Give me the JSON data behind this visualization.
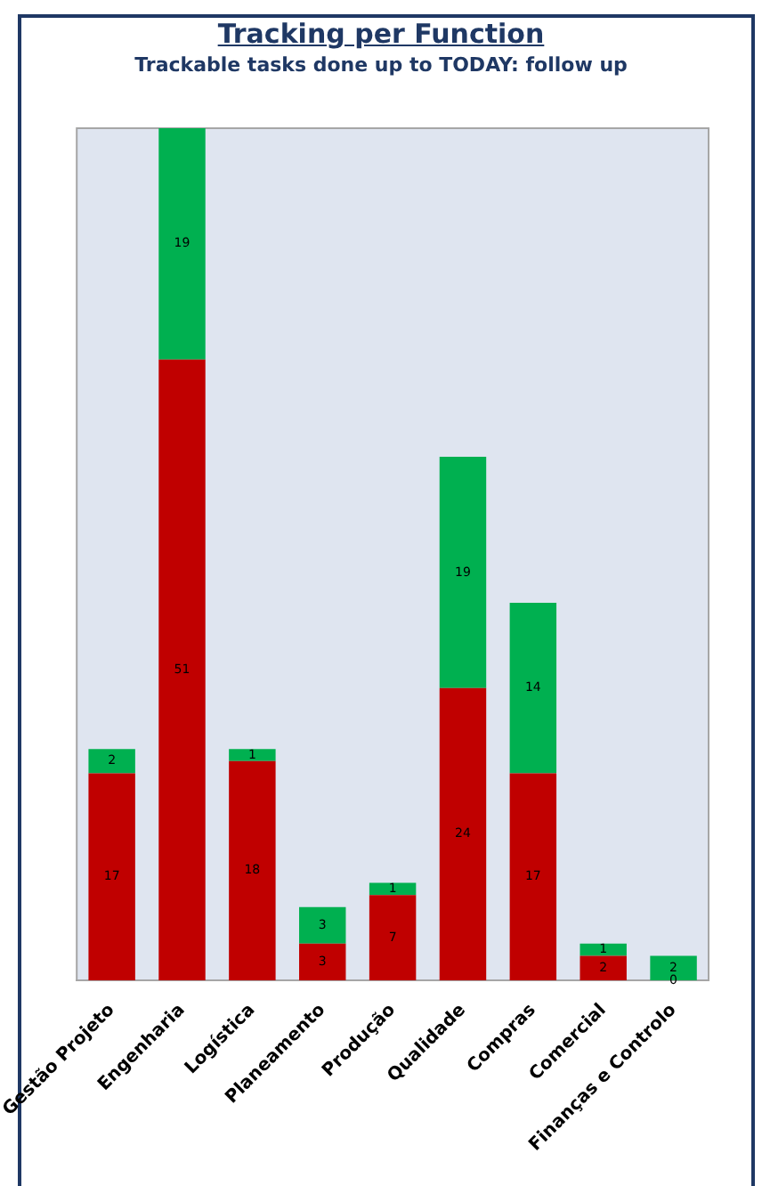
{
  "chart_data": {
    "type": "bar",
    "title": "Tracking per Function",
    "subtitle": "Trackable tasks done up to TODAY: follow up",
    "categories": [
      "Gestão Projeto",
      "Engenharia",
      "Logística",
      "Planeamento",
      "Produção",
      "Qualidade",
      "Compras",
      "Comercial",
      "Finanças e Controlo"
    ],
    "series": [
      {
        "color": "#c00000",
        "values": [
          17,
          51,
          18,
          3,
          7,
          24,
          17,
          2,
          0
        ]
      },
      {
        "color": "#00b050",
        "values": [
          2,
          19,
          1,
          3,
          1,
          19,
          14,
          1,
          2
        ]
      }
    ],
    "stacked": true,
    "ylim": [
      0,
      70
    ],
    "tick_labels": "x",
    "grid": false,
    "legend": false,
    "data_labels": true
  }
}
